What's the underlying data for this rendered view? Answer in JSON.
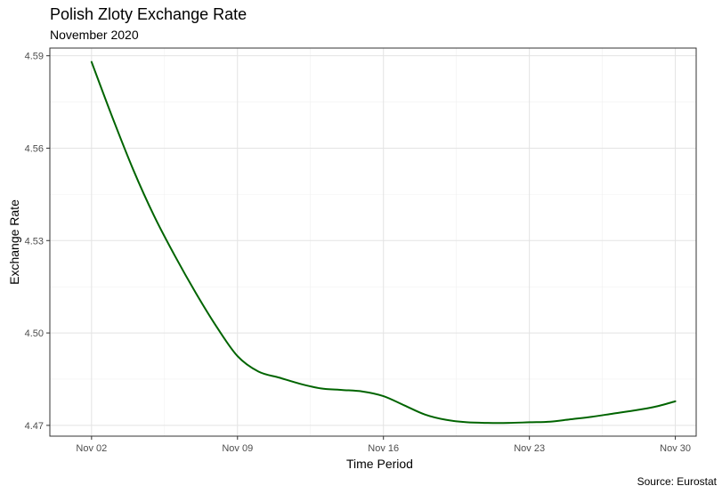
{
  "chart_data": {
    "type": "line",
    "title": "Polish Zloty Exchange Rate",
    "subtitle": "November 2020",
    "xlabel": "Time Period",
    "ylabel": "Exchange Rate",
    "caption": "Source: Eurostat",
    "x_ticks": [
      "Nov 02",
      "Nov 09",
      "Nov 16",
      "Nov 23",
      "Nov 30"
    ],
    "y_ticks": [
      "4.47",
      "4.50",
      "4.53",
      "4.56",
      "4.59"
    ],
    "xlim": [
      "2020-10-31",
      "2020-12-01"
    ],
    "ylim": [
      4.4665,
      4.5925
    ],
    "grid": true,
    "series": [
      {
        "color": "#006400",
        "x": [
          "2020-11-02",
          "2020-11-03",
          "2020-11-04",
          "2020-11-05",
          "2020-11-06",
          "2020-11-07",
          "2020-11-08",
          "2020-11-09",
          "2020-11-10",
          "2020-11-11",
          "2020-11-12",
          "2020-11-13",
          "2020-11-14",
          "2020-11-15",
          "2020-11-16",
          "2020-11-17",
          "2020-11-18",
          "2020-11-19",
          "2020-11-20",
          "2020-11-21",
          "2020-11-22",
          "2020-11-23",
          "2020-11-24",
          "2020-11-25",
          "2020-11-26",
          "2020-11-27",
          "2020-11-28",
          "2020-11-29",
          "2020-11-30"
        ],
        "y": [
          4.588,
          4.57,
          4.553,
          4.538,
          4.525,
          4.513,
          4.502,
          4.4925,
          4.4875,
          4.4855,
          4.4835,
          4.482,
          4.4815,
          4.481,
          4.4795,
          4.4765,
          4.4735,
          4.4718,
          4.471,
          4.4708,
          4.4708,
          4.471,
          4.4712,
          4.472,
          4.4728,
          4.4738,
          4.4748,
          4.476,
          4.4778
        ]
      }
    ]
  }
}
